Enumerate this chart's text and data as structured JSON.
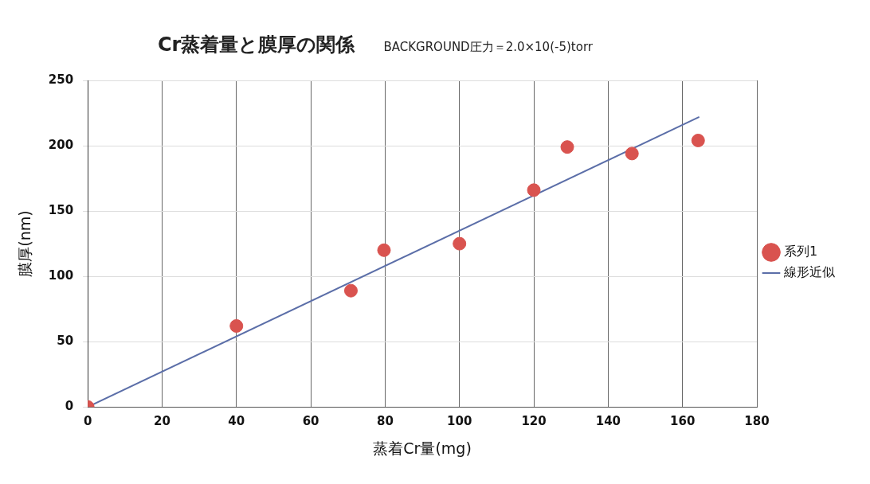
{
  "chart_data": {
    "type": "scatter",
    "title": "Cr蒸着量と膜厚の関係",
    "subtitle": "BACKGROUND圧力＝2.0×10(-5)torr",
    "xlabel": "蒸着Cr量(mg)",
    "ylabel": "膜厚(nm)",
    "xlim": [
      0,
      180
    ],
    "xticks": [
      0,
      20,
      40,
      60,
      80,
      100,
      120,
      140,
      160,
      180
    ],
    "ylim": [
      0,
      250
    ],
    "yticks": [
      0,
      50,
      100,
      150,
      200,
      250
    ],
    "grid": true,
    "legend": "right",
    "series": [
      {
        "name": "系列1",
        "marker": "circle",
        "color": "#d9534f",
        "x": [
          0,
          40,
          70.8,
          79.7,
          100,
          120,
          129,
          146.4,
          164.2
        ],
        "values": [
          0,
          62,
          89,
          120,
          125,
          166,
          199,
          194,
          204
        ]
      },
      {
        "name": "線形近似",
        "type": "line",
        "color": "#5b6ea8",
        "x": [
          0,
          164.5
        ],
        "values": [
          0,
          222
        ]
      }
    ]
  }
}
